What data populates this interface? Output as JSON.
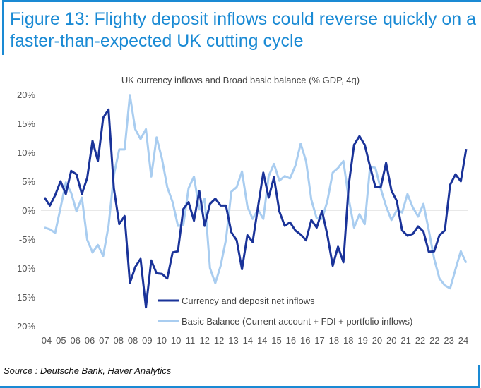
{
  "title": "Figure 13: Flighty deposit inflows could reverse quickly on a faster-than-expected UK cutting cycle",
  "source": "Source : Deutsche Bank, Haver Analytics",
  "colors": {
    "frame": "#1a8ad4",
    "title": "#1a8ad4",
    "currency_series": "#1a3399",
    "basic_balance_series": "#a9cdf0"
  },
  "chart_data": {
    "type": "line",
    "title": "UK currency inflows and Broad basic balance (% GDP, 4q)",
    "xlabel": "",
    "ylabel": "",
    "ylim": [
      -20,
      20
    ],
    "y_ticks": [
      "20%",
      "15%",
      "10%",
      "5%",
      "0%",
      "-5%",
      "-10%",
      "-15%",
      "-20%"
    ],
    "y_tick_values": [
      20,
      15,
      10,
      5,
      0,
      -5,
      -10,
      -15,
      -20
    ],
    "x_tick_labels": [
      "04",
      "05",
      "06",
      "06",
      "07",
      "08",
      "08",
      "09",
      "10",
      "10",
      "11",
      "12",
      "12",
      "13",
      "14",
      "14",
      "15",
      "16",
      "16",
      "17",
      "18",
      "18",
      "19",
      "20",
      "20",
      "21",
      "22",
      "22",
      "23",
      "24"
    ],
    "grid": "zero line only",
    "legend_position": "bottom-center",
    "frequency": "quarterly",
    "series": [
      {
        "name": "Currency and deposit net inflows",
        "values": [
          2.2,
          0.8,
          2.6,
          5,
          2.8,
          6.8,
          6.2,
          2.8,
          5.6,
          12,
          8.5,
          16,
          17.4,
          3.8,
          -2.4,
          -1,
          -12.6,
          -9.8,
          -8.4,
          -16.8,
          -8.7,
          -10.9,
          -11,
          -11.8,
          -7.3,
          -7.1,
          0.2,
          1.4,
          -1.8,
          3.3,
          -2.7,
          1.1,
          2,
          0.8,
          0.8,
          -3.8,
          -5.2,
          -10.2,
          -4.3,
          -5.5,
          0.6,
          6.5,
          2.2,
          5.7,
          -0.2,
          -2.7,
          -2.1,
          -3.5,
          -4.2,
          -5.2,
          -1.7,
          -3,
          -0.1,
          -4.3,
          -9.6,
          -6.3,
          -9,
          4.3,
          11.3,
          12.8,
          11.3,
          7.5,
          4,
          4,
          8.2,
          3.4,
          1.6,
          -3.5,
          -4.4,
          -4.1,
          -2.8,
          -3.7,
          -7.2,
          -7.1,
          -4.3,
          -3.5,
          4.4,
          6.2,
          5,
          10.6
        ]
      },
      {
        "name": "Basic Balance (Current account + FDI + portfolio inflows)",
        "values": [
          -3,
          -3.3,
          -3.9,
          0.4,
          4.8,
          3,
          -0.2,
          2.2,
          -5.1,
          -7.3,
          -6,
          -7.9,
          -2.7,
          6.1,
          10.5,
          10.5,
          19.9,
          14,
          12.3,
          14,
          5.8,
          12.6,
          8.9,
          4,
          1.4,
          -2.7,
          -2.6,
          3.8,
          5.8,
          0.2,
          2,
          -10,
          -12.6,
          -9.6,
          -5.1,
          3.2,
          4,
          6.7,
          0.7,
          -1.5,
          0.1,
          -1.5,
          5.9,
          8,
          5.1,
          5.9,
          5.5,
          7.7,
          11.5,
          8.5,
          1.8,
          -1.4,
          -1.5,
          1.6,
          6.5,
          7.3,
          8.5,
          2,
          -3,
          -0.7,
          -2.4,
          7.6,
          7.3,
          3.7,
          0.7,
          -1.7,
          0,
          -0.4,
          2.8,
          0.5,
          -1.1,
          1.1,
          -3.5,
          -8.4,
          -11.8,
          -13,
          -13.5,
          -10.2,
          -7.1,
          -9.1
        ]
      }
    ]
  }
}
